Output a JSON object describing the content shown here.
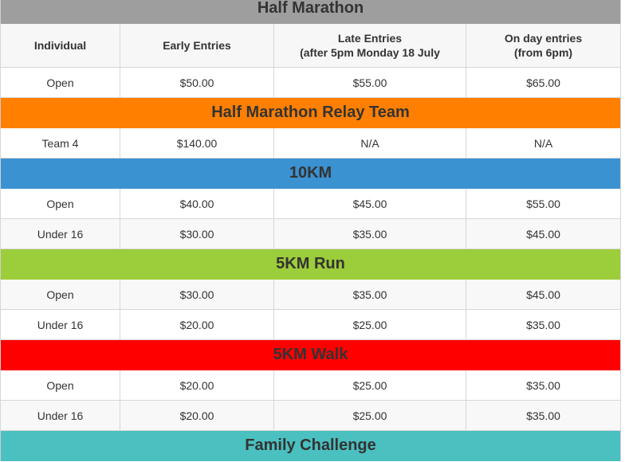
{
  "colors": {
    "half_marathon_banner": "#9e9e9e",
    "relay_banner": "#ff7f00",
    "10km_banner": "#3b92d1",
    "5km_run_banner": "#9ccd3a",
    "5km_walk_banner": "#ff0000",
    "family_banner": "#4bc0c0"
  },
  "header": {
    "individual": "Individual",
    "early": "Early Entries",
    "late_line1": "Late Entries",
    "late_line2": "(after 5pm Monday 18 July",
    "onday_line1": "On day entries",
    "onday_line2": "(from 6pm)"
  },
  "sections": [
    {
      "title": "Half Marathon",
      "rows": [
        {
          "category": "Open",
          "early": "$50.00",
          "late": "$55.00",
          "onday": "$65.00"
        }
      ]
    },
    {
      "title": "Half Marathon Relay Team",
      "rows": [
        {
          "category": "Team 4",
          "early": "$140.00",
          "late": "N/A",
          "onday": "N/A"
        }
      ]
    },
    {
      "title": "10KM",
      "rows": [
        {
          "category": "Open",
          "early": "$40.00",
          "late": "$45.00",
          "onday": "$55.00"
        },
        {
          "category": "Under 16",
          "early": "$30.00",
          "late": "$35.00",
          "onday": "$45.00"
        }
      ]
    },
    {
      "title": "5KM Run",
      "rows": [
        {
          "category": "Open",
          "early": "$30.00",
          "late": "$35.00",
          "onday": "$45.00"
        },
        {
          "category": "Under 16",
          "early": "$20.00",
          "late": "$25.00",
          "onday": "$35.00"
        }
      ]
    },
    {
      "title": "5KM Walk",
      "rows": [
        {
          "category": "Open",
          "early": "$20.00",
          "late": "$25.00",
          "onday": "$35.00"
        },
        {
          "category": "Under 16",
          "early": "$20.00",
          "late": "$25.00",
          "onday": "$35.00"
        }
      ]
    },
    {
      "title": "Family Challenge",
      "rows": []
    }
  ]
}
